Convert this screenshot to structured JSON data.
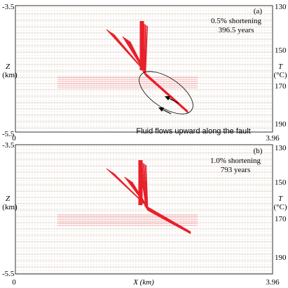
{
  "chart_data": [
    {
      "type": "vector-field",
      "panel_label": "(a)",
      "shortening": "0.5% shortening",
      "time": "396.5 years",
      "annotation": "Fluid flows upward along the fault",
      "x_range": [
        0,
        3.96
      ],
      "z_range": [
        -5.5,
        -3.5
      ],
      "t_ticks": [
        "130",
        "150",
        "170",
        "190"
      ],
      "z_label": "Z",
      "z_unit": "(km)",
      "t_label": "T",
      "t_unit": "(°C)",
      "z_ticks": [
        "-3.5",
        "-5.5"
      ],
      "x_ticks": [
        "0",
        "3.96"
      ]
    },
    {
      "type": "vector-field",
      "panel_label": "(b)",
      "shortening": "1.0% shortening",
      "time": "793 years",
      "x_range": [
        0,
        3.96
      ],
      "z_range": [
        -5.5,
        -3.5
      ],
      "t_ticks": [
        "130",
        "150",
        "170",
        "190"
      ],
      "z_label": "Z",
      "z_unit": "(km)",
      "t_label": "T",
      "t_unit": "(°C)",
      "z_ticks": [
        "-3.5",
        "-5.5"
      ],
      "x_ticks": [
        "0",
        "3.96"
      ],
      "x_label": "X (km)"
    }
  ],
  "colors": {
    "vectors": "#e8202a",
    "grid": "#f0a0a0",
    "isotherm": "#8fbf8f",
    "frame": "#000000"
  }
}
